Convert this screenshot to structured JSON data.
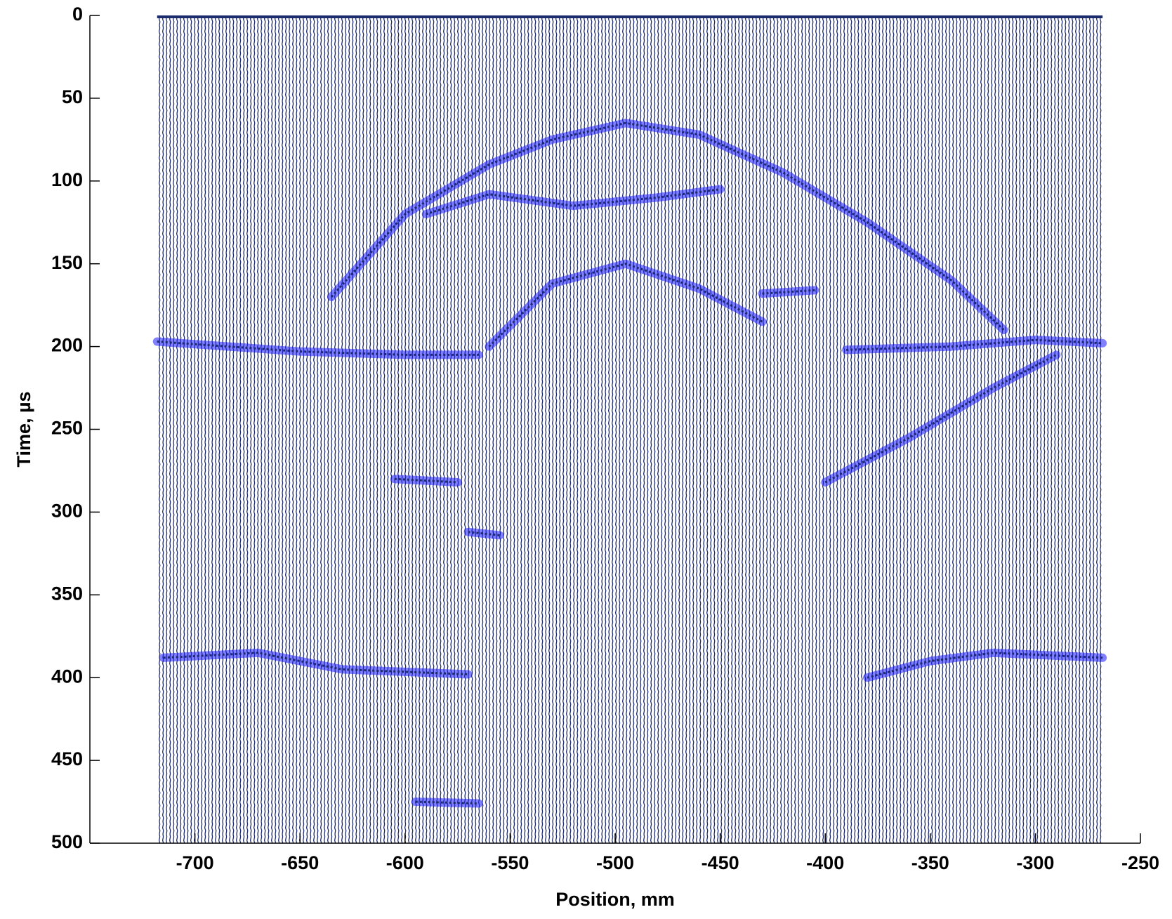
{
  "chart_data": {
    "type": "wiggle",
    "xlabel": "Position, mm",
    "ylabel": "Time, µs",
    "xlim": [
      -750,
      -250
    ],
    "ylim": [
      500,
      0
    ],
    "xticks": [
      -700,
      -650,
      -600,
      -550,
      -500,
      -450,
      -400,
      -350,
      -300,
      -250
    ],
    "yticks": [
      0,
      50,
      100,
      150,
      200,
      250,
      300,
      350,
      400,
      450,
      500
    ],
    "trace_range": [
      -718,
      -268
    ],
    "color": "#1c2a6e",
    "highlight_color": "#1a1aff",
    "reflectors": [
      {
        "x": [
          -635,
          -600,
          -560,
          -530,
          -495,
          -460,
          -420,
          -380,
          -340,
          -315
        ],
        "y": [
          170,
          120,
          90,
          75,
          65,
          72,
          95,
          125,
          160,
          190
        ]
      },
      {
        "x": [
          -718,
          -650,
          -600,
          -565
        ],
        "y": [
          197,
          203,
          205,
          205
        ]
      },
      {
        "x": [
          -390,
          -340,
          -300,
          -268
        ],
        "y": [
          202,
          200,
          196,
          198
        ]
      },
      {
        "x": [
          -560,
          -530,
          -495,
          -460,
          -430
        ],
        "y": [
          200,
          162,
          150,
          165,
          185
        ]
      },
      {
        "x": [
          -590,
          -560,
          -520,
          -480,
          -450
        ],
        "y": [
          120,
          108,
          115,
          110,
          105
        ]
      },
      {
        "x": [
          -715,
          -670,
          -630,
          -570
        ],
        "y": [
          388,
          385,
          395,
          398
        ]
      },
      {
        "x": [
          -380,
          -350,
          -320,
          -268
        ],
        "y": [
          400,
          390,
          385,
          388
        ]
      },
      {
        "x": [
          -400,
          -360,
          -320,
          -290
        ],
        "y": [
          282,
          255,
          225,
          205
        ]
      },
      {
        "x": [
          -605,
          -575
        ],
        "y": [
          280,
          282
        ]
      },
      {
        "x": [
          -570,
          -555
        ],
        "y": [
          312,
          314
        ]
      },
      {
        "x": [
          -595,
          -565
        ],
        "y": [
          475,
          476
        ]
      },
      {
        "x": [
          -430,
          -405
        ],
        "y": [
          168,
          166
        ]
      }
    ]
  }
}
